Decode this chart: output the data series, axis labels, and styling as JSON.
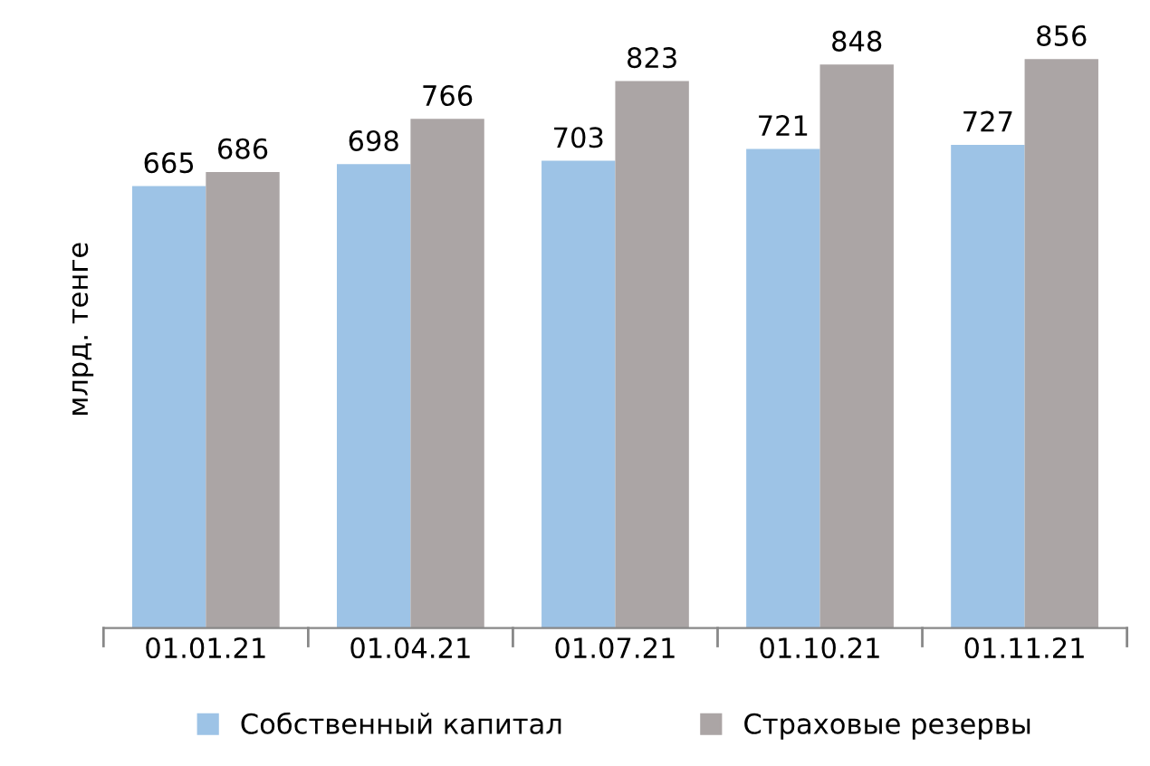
{
  "chart_data": {
    "type": "bar",
    "ylabel": "млрд. тенге",
    "categories": [
      "01.01.21",
      "01.04.21",
      "01.07.21",
      "01.10.21",
      "01.11.21"
    ],
    "series": [
      {
        "name": "Собственный капитал",
        "color": "#9dc3e6",
        "values": [
          665,
          698,
          703,
          721,
          727
        ]
      },
      {
        "name": "Страховые резервы",
        "color": "#aba5a5",
        "values": [
          686,
          766,
          823,
          848,
          856
        ]
      }
    ],
    "data_labels": true,
    "legend": "bottom",
    "grid": false
  }
}
